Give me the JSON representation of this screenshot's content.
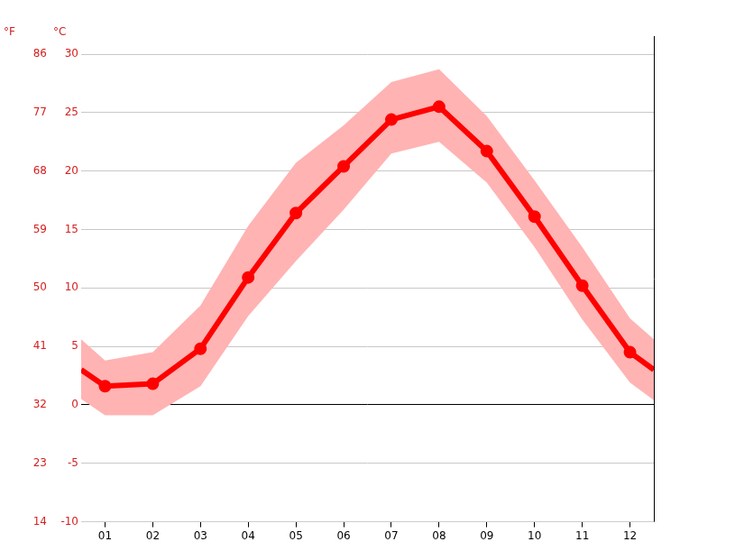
{
  "chart_data": {
    "type": "line",
    "x": [
      0.5,
      1,
      2,
      3,
      4,
      5,
      6,
      7,
      8,
      9,
      10,
      11,
      12,
      12.5
    ],
    "values": [
      3.0,
      1.6,
      1.8,
      4.8,
      10.9,
      16.4,
      20.4,
      24.4,
      25.5,
      21.7,
      16.1,
      10.2,
      4.5,
      3.0
    ],
    "color": "#ff0000",
    "marker": "circle",
    "range": {
      "upper": [
        5.6,
        3.8,
        4.5,
        8.5,
        15.3,
        20.7,
        23.9,
        27.6,
        28.7,
        24.7,
        19.2,
        13.5,
        7.4,
        5.6
      ],
      "lower": [
        0.5,
        -0.9,
        -0.9,
        1.6,
        7.6,
        12.3,
        16.7,
        21.5,
        22.5,
        19.0,
        13.5,
        7.3,
        1.9,
        0.4
      ],
      "color": "#ffb3b3"
    },
    "xlim": [
      0.5,
      12.5
    ],
    "xticks": [
      {
        "value": 1,
        "label": "01"
      },
      {
        "value": 2,
        "label": "02"
      },
      {
        "value": 3,
        "label": "03"
      },
      {
        "value": 4,
        "label": "04"
      },
      {
        "value": 5,
        "label": "05"
      },
      {
        "value": 6,
        "label": "06"
      },
      {
        "value": 7,
        "label": "07"
      },
      {
        "value": 8,
        "label": "08"
      },
      {
        "value": 9,
        "label": "09"
      },
      {
        "value": 10,
        "label": "10"
      },
      {
        "value": 11,
        "label": "11"
      },
      {
        "value": 12,
        "label": "12"
      }
    ],
    "ylim": [
      -10,
      30
    ],
    "yticks": [
      -10,
      -5,
      0,
      5,
      10,
      15,
      20,
      25,
      30
    ],
    "y_label": "°C",
    "y2lim": [
      14,
      86
    ],
    "y2ticks": [
      14,
      23,
      32,
      41,
      50,
      59,
      68,
      77,
      86
    ],
    "y2_label": "°F",
    "grid": true
  }
}
